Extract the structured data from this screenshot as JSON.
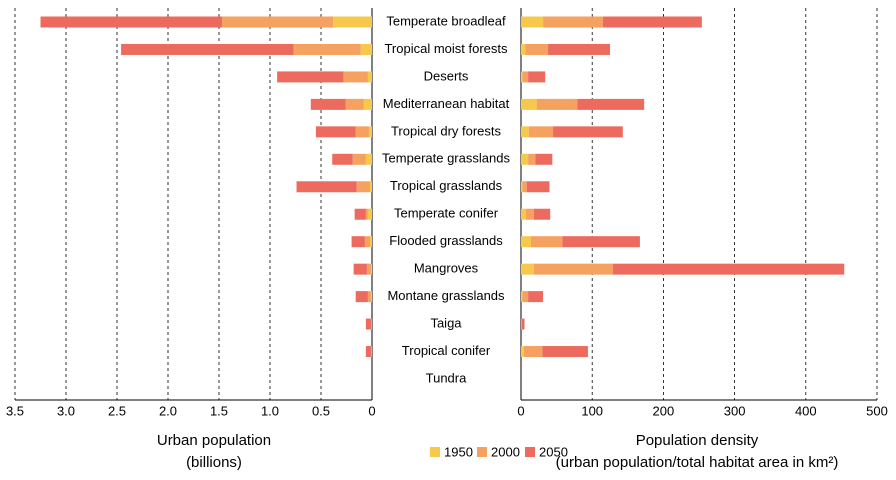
{
  "chart_data": [
    {
      "type": "bar",
      "orientation": "horizontal",
      "stacked": true,
      "grid": true,
      "xlabel": "Urban population",
      "xlabel_sub": "(billions)",
      "categories": [
        "Temperate broadleaf",
        "Tropical moist forests",
        "Deserts",
        "Mediterranean habitat",
        "Tropical dry forests",
        "Temperate grasslands",
        "Tropical grasslands",
        "Temperate conifer",
        "Flooded grasslands",
        "Mangroves",
        "Montane grasslands",
        "Taiga",
        "Tropical conifer",
        "Tundra"
      ],
      "xlim": [
        3.5,
        0
      ],
      "xticks": [
        {
          "value": 3.5,
          "label": "3.5"
        },
        {
          "value": 3,
          "label": "3.0"
        },
        {
          "value": 2.5,
          "label": "2.5"
        },
        {
          "value": 2,
          "label": "2.0"
        },
        {
          "value": 1.5,
          "label": "1.5"
        },
        {
          "value": 1,
          "label": "1.0"
        },
        {
          "value": 0.5,
          "label": "0.5"
        },
        0
      ],
      "series": [
        {
          "name": "1950",
          "color": "#f6c94c",
          "values": [
            0.38,
            0.11,
            0.04,
            0.08,
            0.03,
            0.06,
            0.02,
            0.04,
            0.02,
            0.01,
            0.01,
            0,
            0,
            0
          ]
        },
        {
          "name": "2000",
          "color": "#f5a261",
          "values": [
            1.09,
            0.66,
            0.24,
            0.18,
            0.13,
            0.13,
            0.13,
            0.02,
            0.05,
            0.04,
            0.03,
            0.01,
            0.01,
            0
          ]
        },
        {
          "name": "2050",
          "color": "#ec6b5e",
          "values": [
            1.78,
            1.69,
            0.65,
            0.34,
            0.39,
            0.2,
            0.59,
            0.11,
            0.13,
            0.13,
            0.12,
            0.05,
            0.05,
            0
          ]
        }
      ]
    },
    {
      "type": "bar",
      "orientation": "horizontal",
      "stacked": true,
      "grid": true,
      "xlabel": "Population density",
      "xlabel_sub": "(urban population/total habitat area in km²)",
      "xlim": [
        0,
        500
      ],
      "xticks": [
        0,
        100,
        200,
        300,
        400,
        500
      ],
      "series": [
        {
          "color": "#f6c94c",
          "values": [
            31,
            6,
            2,
            22,
            11,
            10,
            2,
            7,
            14,
            18,
            2,
            0,
            4,
            0
          ]
        },
        {
          "color": "#f5a261",
          "values": [
            84,
            32,
            8,
            57,
            34,
            10,
            6,
            11,
            44,
            111,
            8,
            1,
            26,
            0
          ]
        },
        {
          "color": "#ec6b5e",
          "values": [
            139,
            87,
            24,
            94,
            98,
            24,
            32,
            23,
            109,
            325,
            21,
            4,
            64,
            0
          ]
        }
      ]
    }
  ]
}
